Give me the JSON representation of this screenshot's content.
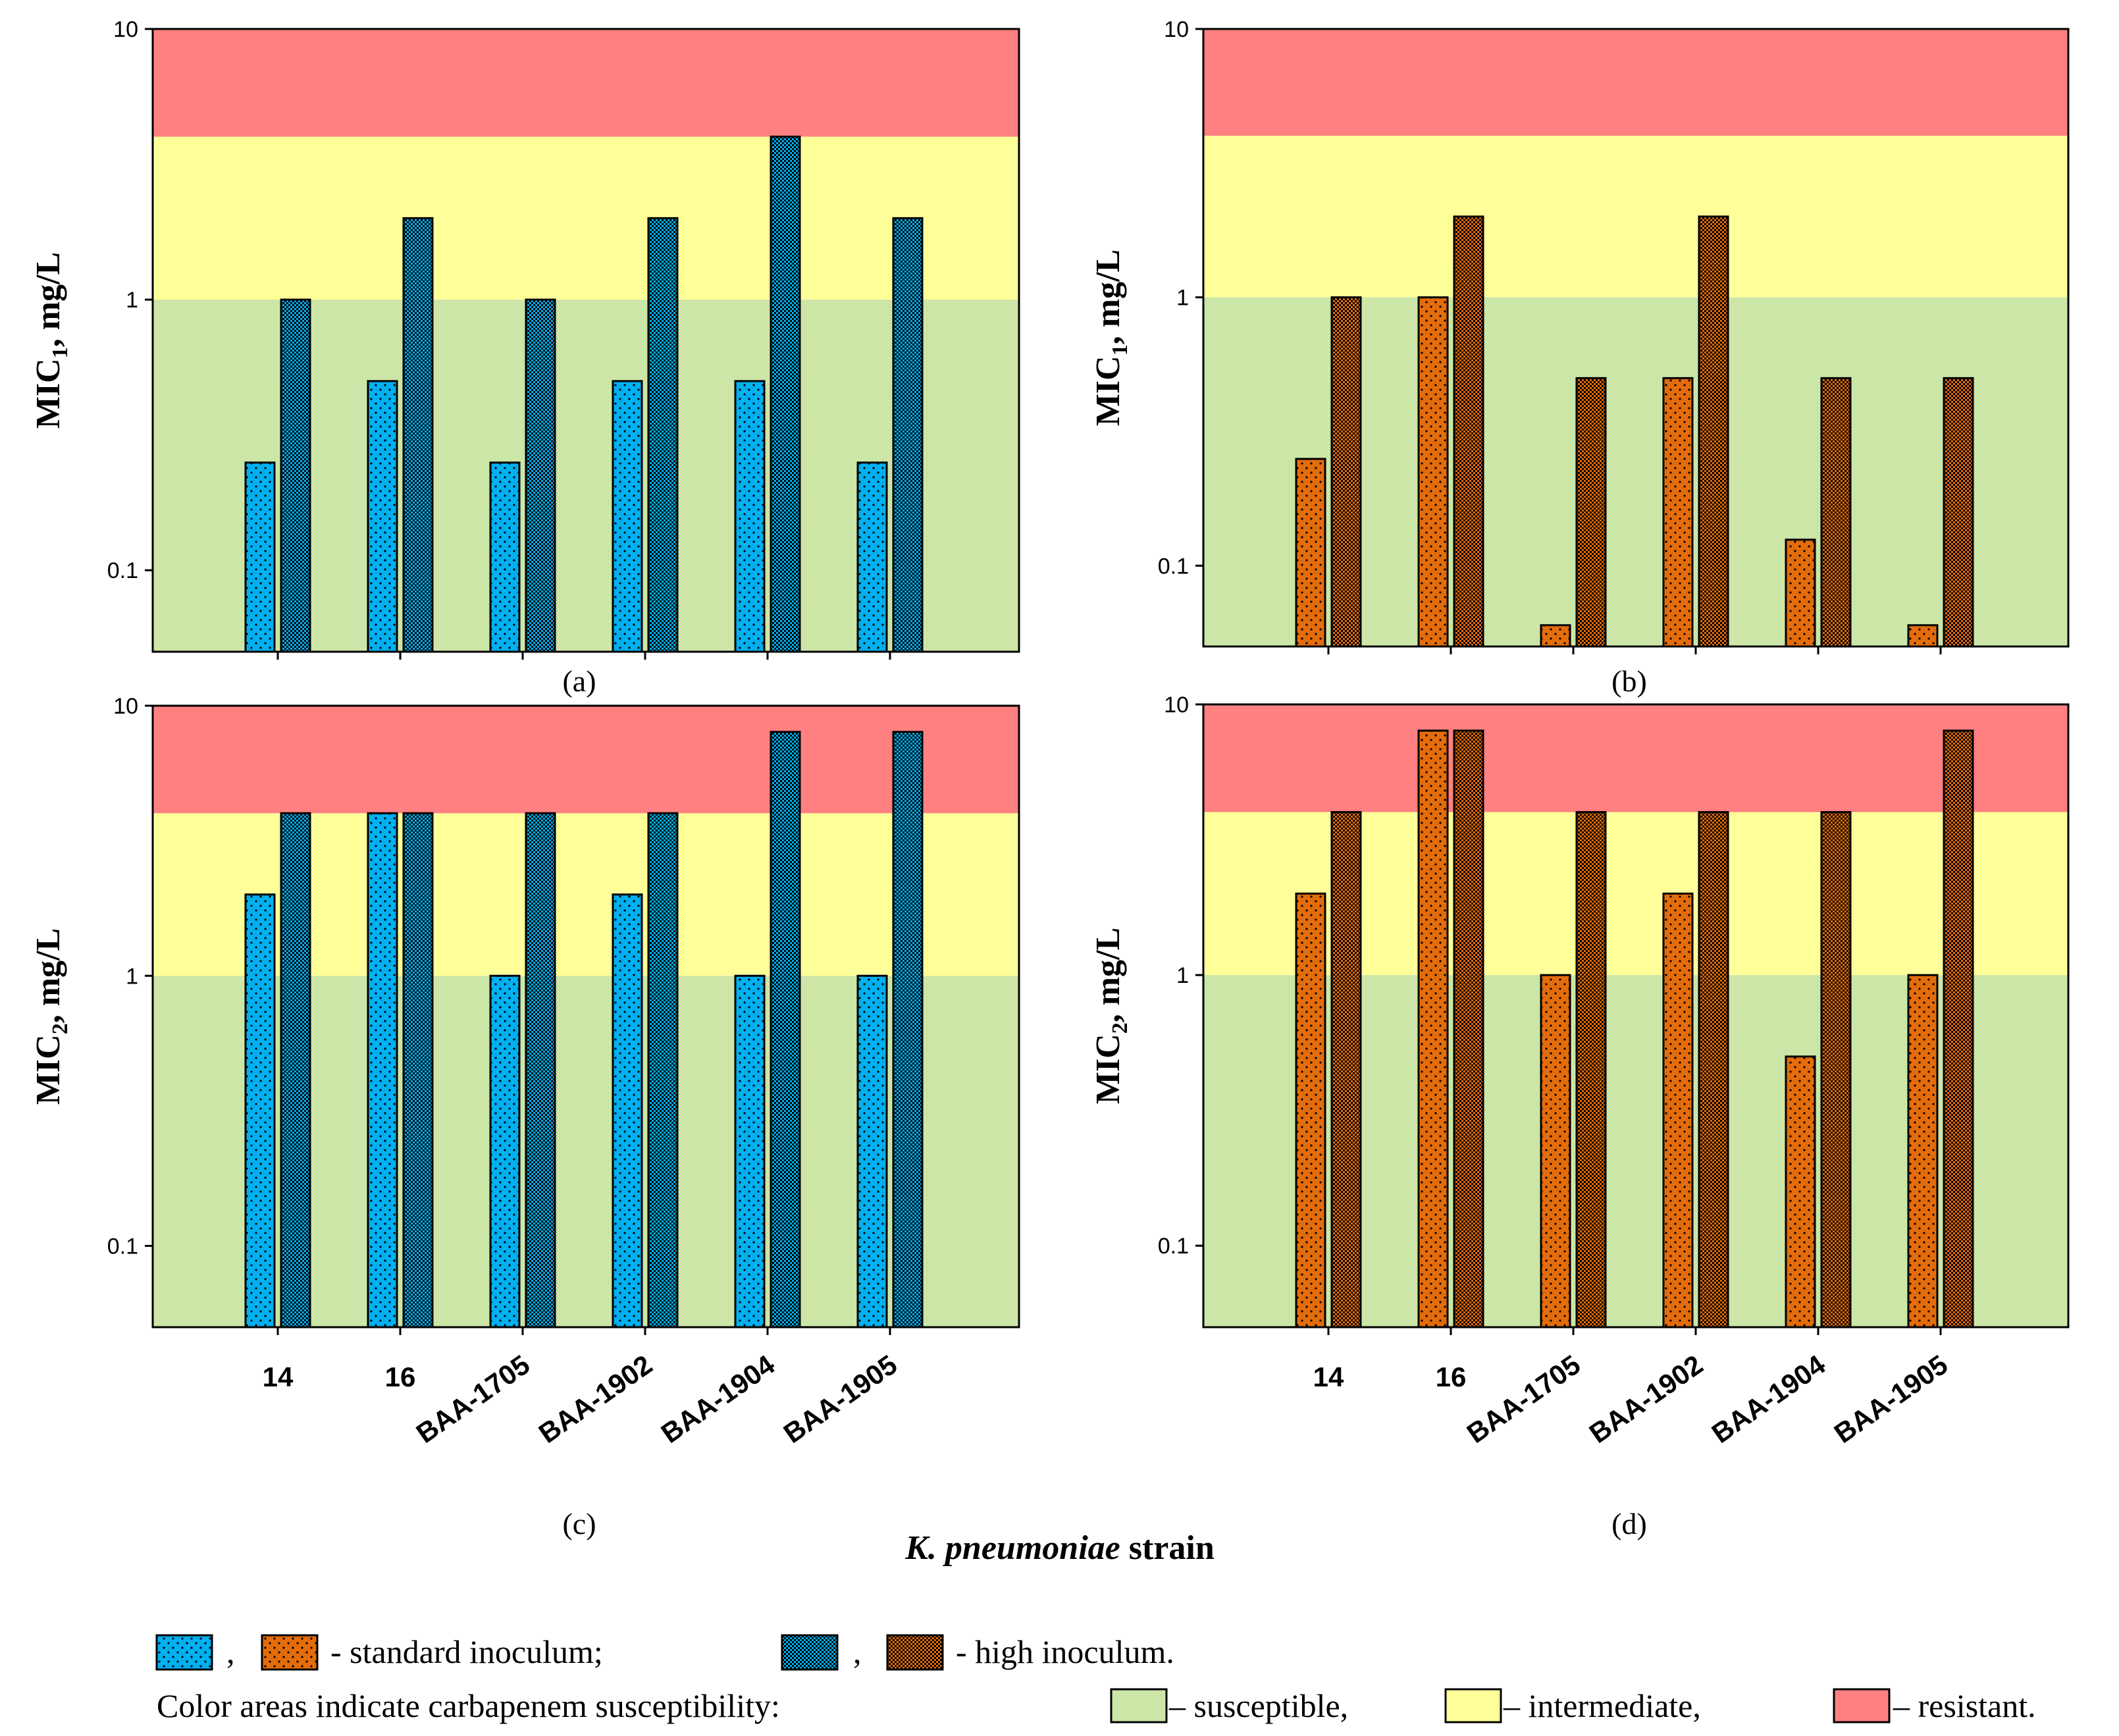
{
  "colors": {
    "resistant": "#ff8080",
    "intermediate": "#ffff99",
    "susceptible": "#cce6a8",
    "blue": "#00b0f0",
    "orange": "#e46c0a"
  },
  "x_title": {
    "italic": "K. pneumoniae",
    "rest": " strain"
  },
  "legend": {
    "sep": ",",
    "standard": "- standard inoculum;",
    "sep2": ",",
    "high": "- high inoculum.",
    "areas_intro": "Color areas indicate carbapenem susceptibility:",
    "susceptible": "– susceptible,",
    "intermediate": "– intermediate,",
    "resistant": "– resistant."
  },
  "chart_data": [
    {
      "type": "bar",
      "panel": "(a)",
      "scale": "log",
      "ylabel_main": "MIC",
      "ylabel_sub": "1",
      "ylabel_rest": ", mg/L",
      "ylim": [
        0.05,
        10
      ],
      "yticks": [
        "0.1",
        "1",
        "10"
      ],
      "bands": {
        "susceptible": [
          0.05,
          1
        ],
        "intermediate": [
          1,
          4
        ],
        "resistant": [
          4,
          10
        ]
      },
      "categories": [
        "14",
        "16",
        "BAA-1705",
        "BAA-1902",
        "BAA-1904",
        "BAA-1905"
      ],
      "show_category_labels": false,
      "series": [
        {
          "name": "standard inoculum",
          "color": "blue",
          "pattern": "standard",
          "values": [
            0.25,
            0.5,
            0.25,
            0.5,
            0.5,
            0.25
          ]
        },
        {
          "name": "high inoculum",
          "color": "blue",
          "pattern": "high",
          "values": [
            1,
            2,
            1,
            2,
            4,
            2
          ]
        }
      ]
    },
    {
      "type": "bar",
      "panel": "(b)",
      "scale": "log",
      "ylabel_main": "MIC",
      "ylabel_sub": "1",
      "ylabel_rest": ", mg/L",
      "ylim": [
        0.05,
        10
      ],
      "yticks": [
        "0.1",
        "1",
        "10"
      ],
      "bands": {
        "susceptible": [
          0.05,
          1
        ],
        "intermediate": [
          1,
          4
        ],
        "resistant": [
          4,
          10
        ]
      },
      "categories": [
        "14",
        "16",
        "BAA-1705",
        "BAA-1902",
        "BAA-1904",
        "BAA-1905"
      ],
      "show_category_labels": false,
      "series": [
        {
          "name": "standard inoculum",
          "color": "orange",
          "pattern": "standard",
          "values": [
            0.25,
            1,
            0.06,
            0.5,
            0.125,
            0.06
          ]
        },
        {
          "name": "high inoculum",
          "color": "orange",
          "pattern": "high",
          "values": [
            1,
            2,
            0.5,
            2,
            0.5,
            0.5
          ]
        }
      ]
    },
    {
      "type": "bar",
      "panel": "(c)",
      "scale": "log",
      "ylabel_main": "MIC",
      "ylabel_sub": "2",
      "ylabel_rest": ", mg/L",
      "ylim": [
        0.05,
        10
      ],
      "yticks": [
        "0.1",
        "1",
        "10"
      ],
      "bands": {
        "susceptible": [
          0.05,
          1
        ],
        "intermediate": [
          1,
          4
        ],
        "resistant": [
          4,
          10
        ]
      },
      "categories": [
        "14",
        "16",
        "BAA-1705",
        "BAA-1902",
        "BAA-1904",
        "BAA-1905"
      ],
      "show_category_labels": true,
      "series": [
        {
          "name": "standard inoculum",
          "color": "blue",
          "pattern": "standard",
          "values": [
            2,
            4,
            1,
            2,
            1,
            1
          ]
        },
        {
          "name": "high inoculum",
          "color": "blue",
          "pattern": "high",
          "values": [
            4,
            4,
            4,
            4,
            8,
            8
          ]
        }
      ]
    },
    {
      "type": "bar",
      "panel": "(d)",
      "scale": "log",
      "ylabel_main": "MIC",
      "ylabel_sub": "2",
      "ylabel_rest": ", mg/L",
      "ylim": [
        0.05,
        10
      ],
      "yticks": [
        "0.1",
        "1",
        "10"
      ],
      "bands": {
        "susceptible": [
          0.05,
          1
        ],
        "intermediate": [
          1,
          4
        ],
        "resistant": [
          4,
          10
        ]
      },
      "categories": [
        "14",
        "16",
        "BAA-1705",
        "BAA-1902",
        "BAA-1904",
        "BAA-1905"
      ],
      "show_category_labels": true,
      "series": [
        {
          "name": "standard inoculum",
          "color": "orange",
          "pattern": "standard",
          "values": [
            2,
            8,
            1,
            2,
            0.5,
            1
          ]
        },
        {
          "name": "high inoculum",
          "color": "orange",
          "pattern": "high",
          "values": [
            4,
            8,
            4,
            4,
            4,
            8
          ]
        }
      ]
    }
  ]
}
